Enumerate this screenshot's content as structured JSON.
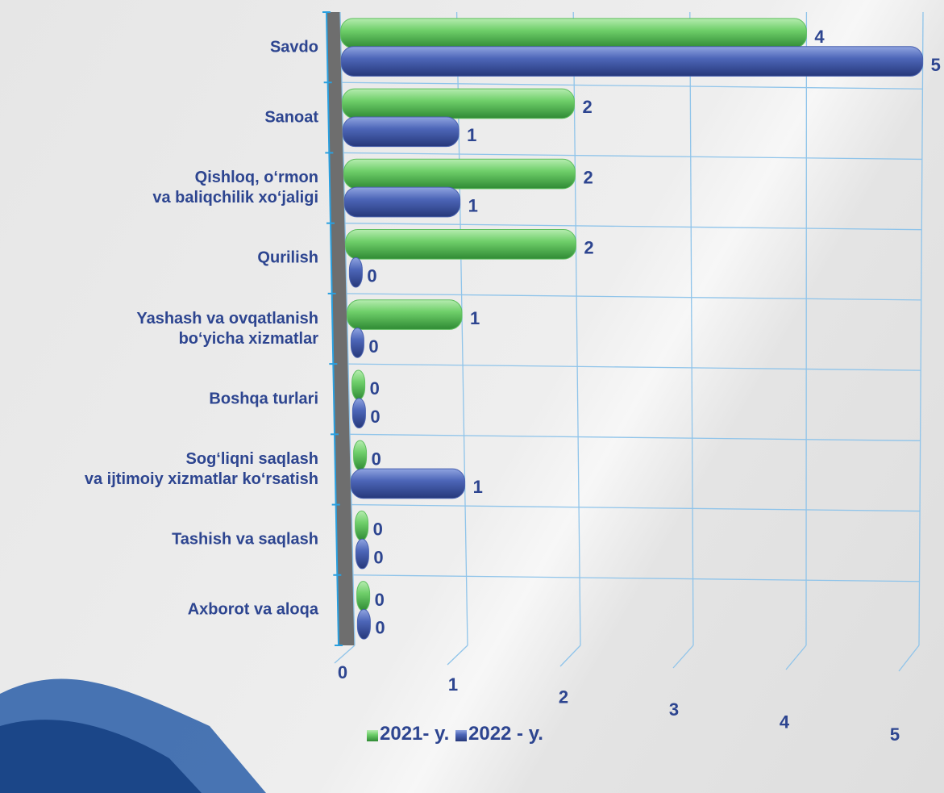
{
  "chart_data": {
    "type": "bar",
    "orientation": "horizontal",
    "categories": [
      "Savdo",
      "Sanoat",
      "Qishloq, o‘rmon\nva baliqchilik xo‘jaligi",
      "Qurilish",
      "Yashash va ovqatlanish\nbo‘yicha xizmatlar",
      "Boshqa turlari",
      "Sog‘liqni saqlash\nva ijtimoiy xizmatlar ko‘rsatish",
      "Tashish va saqlash",
      "Axborot va aloqa"
    ],
    "series": [
      {
        "name": "2021- y.",
        "color": "#5fbf5f",
        "values": [
          4,
          2,
          2,
          2,
          1,
          0,
          0,
          0,
          0
        ]
      },
      {
        "name": "2022 - y.",
        "color": "#4a62b0",
        "values": [
          5,
          1,
          1,
          0,
          0,
          0,
          1,
          0,
          0
        ]
      }
    ],
    "xlim": [
      0,
      5
    ],
    "xticks": [
      0,
      1,
      2,
      3,
      4,
      5
    ],
    "grid": true,
    "legend": "bottom"
  }
}
